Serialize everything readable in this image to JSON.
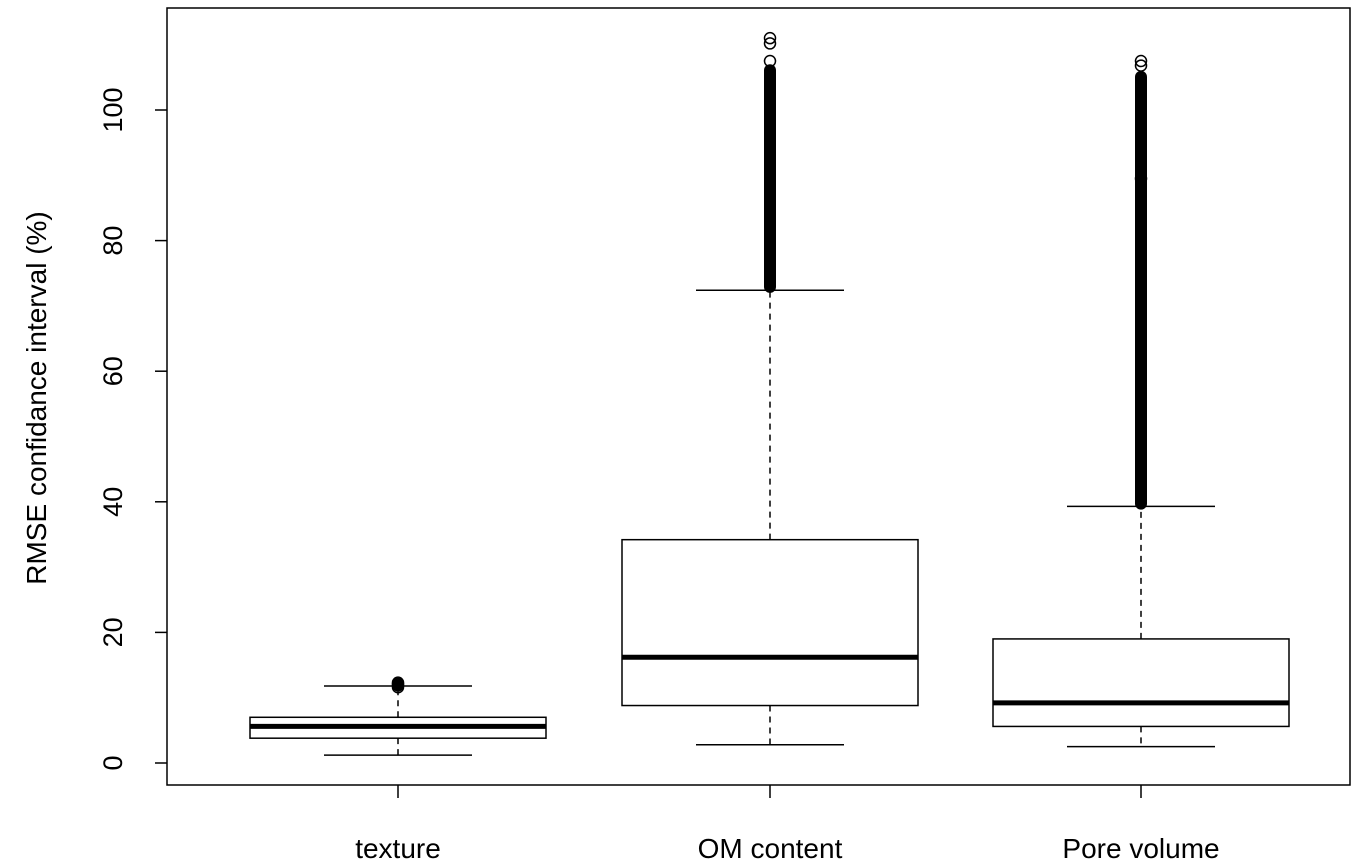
{
  "chart_data": {
    "type": "boxplot",
    "title": "",
    "xlabel": "",
    "ylabel": "RMSE confidance interval (%)",
    "ylim": [
      -3.5,
      115.3
    ],
    "yticks": [
      "0",
      "20",
      "40",
      "60",
      "80",
      "100"
    ],
    "yticks_values": [
      0,
      20,
      40,
      60,
      80,
      100
    ],
    "grid": false,
    "legend": "none",
    "categories": [
      "texture",
      "OM content",
      "Pore volume"
    ],
    "series": [
      {
        "category": "texture",
        "whisker_low": 1.2,
        "q1": 3.8,
        "median": 5.6,
        "q3": 7.0,
        "whisker_high": 11.8,
        "outliers": [
          11.6,
          11.9,
          12.1,
          12.3
        ]
      },
      {
        "category": "OM content",
        "whisker_low": 2.8,
        "q1": 8.8,
        "median": 16.2,
        "q3": 34.2,
        "whisker_high": 72.4,
        "outlier_range": [
          72.0,
          107.0
        ],
        "outliers": [
          107.5,
          110.2,
          111.0
        ]
      },
      {
        "category": "Pore volume",
        "whisker_low": 2.5,
        "q1": 5.6,
        "median": 9.2,
        "q3": 19.0,
        "whisker_high": 39.3,
        "outlier_range": [
          38.8,
          106.0
        ],
        "outliers": [
          89.5,
          106.8,
          107.5
        ]
      }
    ]
  }
}
